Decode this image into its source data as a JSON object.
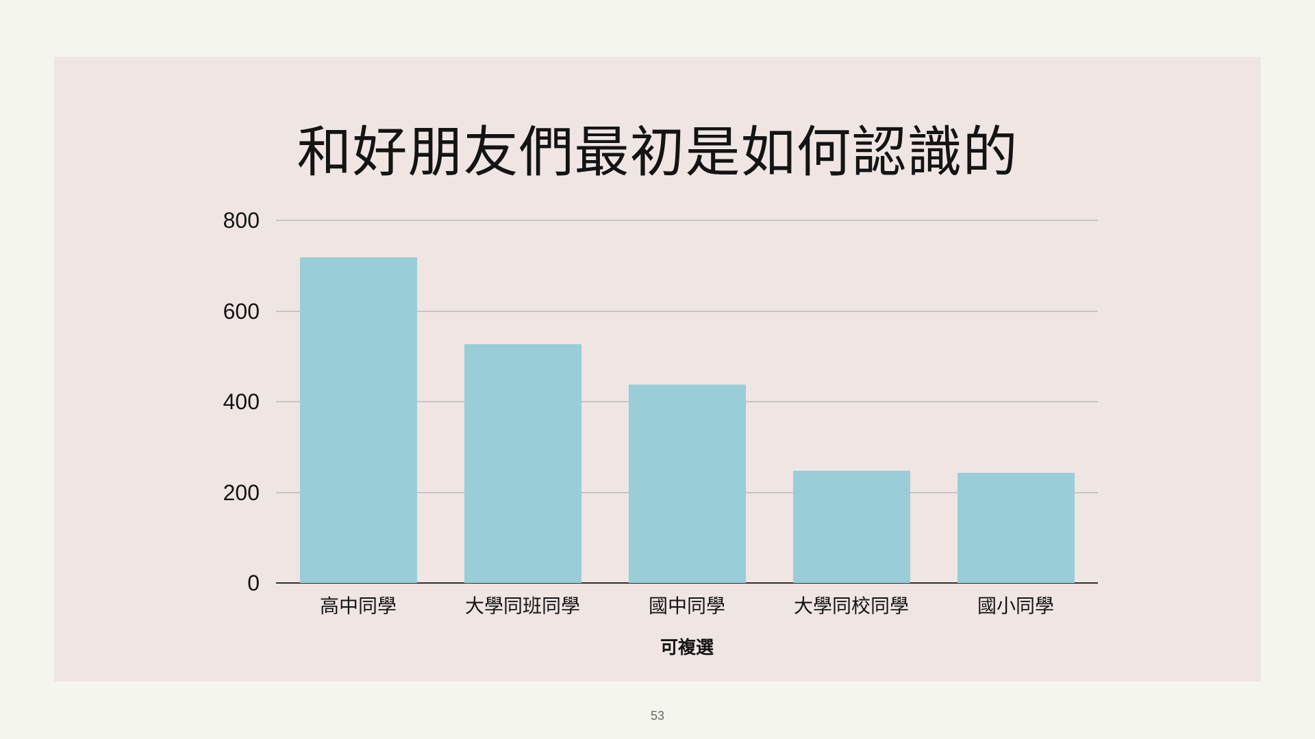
{
  "page": {
    "background": "#f4f6ee",
    "number": "53"
  },
  "slide": {
    "background": "#efe5e3"
  },
  "chart_data": {
    "type": "bar",
    "title": "和好朋友們最初是如何認識的",
    "categories": [
      "高中同學",
      "大學同班同學",
      "國中同學",
      "大學同校同學",
      "國小同學"
    ],
    "values": [
      718,
      527,
      438,
      248,
      243
    ],
    "xlabel": "可複選",
    "ylabel": "",
    "ylim": [
      0,
      800
    ],
    "yticks": [
      0,
      200,
      400,
      600,
      800
    ],
    "grid": true,
    "legend": false,
    "bar_color": "#99cdd8",
    "grid_color": "#c9c5c3",
    "axis_color": "#2e2e2e",
    "text_color": "#141414"
  }
}
